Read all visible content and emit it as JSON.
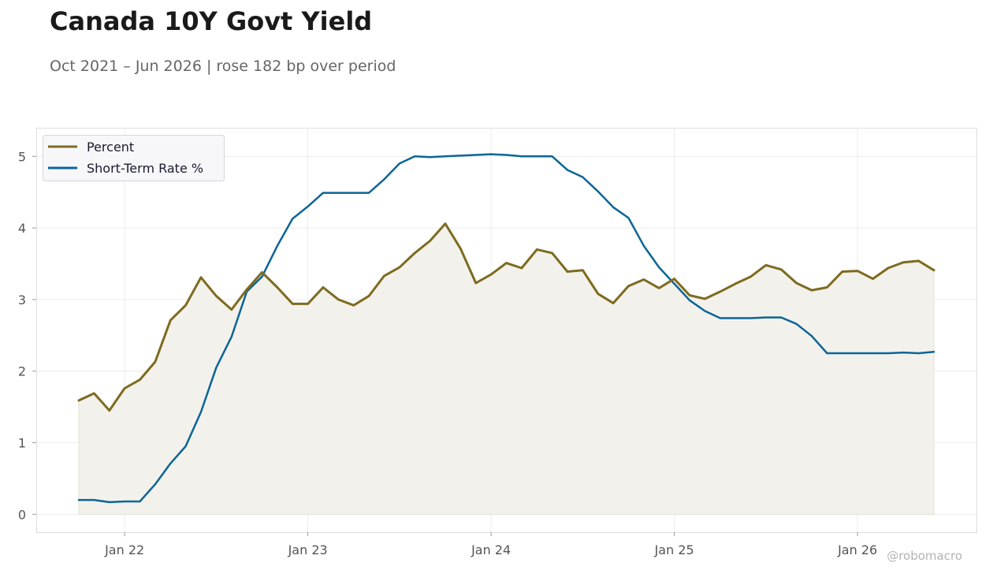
{
  "title": "Canada 10Y Govt Yield",
  "subtitle": "Oct 2021 – Jun 2026 | rose 182 bp over period",
  "watermark": "@robomacro",
  "chart_data": {
    "type": "line",
    "title": "Canada 10Y Govt Yield",
    "subtitle": "Oct 2021 – Jun 2026 | rose 182 bp over period",
    "xlabel": "",
    "ylabel": "",
    "x_start": "2021-10",
    "x_end": "2026-06",
    "x_ticks": [
      {
        "label": "Jan 22",
        "date": "2022-01"
      },
      {
        "label": "Jan 23",
        "date": "2023-01"
      },
      {
        "label": "Jan 24",
        "date": "2024-01"
      },
      {
        "label": "Jan 25",
        "date": "2025-01"
      },
      {
        "label": "Jan 26",
        "date": "2026-01"
      }
    ],
    "yticks": [
      0,
      1,
      2,
      3,
      4,
      5
    ],
    "ylim": [
      -0.25,
      5.4
    ],
    "grid": true,
    "legend_position": "top-left",
    "series": [
      {
        "name": "Percent",
        "color": "#7d6b1f",
        "fill": true,
        "fill_color": "#f3f1ec",
        "values": [
          1.59,
          1.69,
          1.45,
          1.76,
          1.88,
          2.13,
          2.71,
          2.92,
          3.31,
          3.05,
          2.86,
          3.14,
          3.38,
          3.17,
          2.94,
          2.94,
          3.17,
          3.0,
          2.92,
          3.05,
          3.33,
          3.45,
          3.65,
          3.82,
          4.06,
          3.71,
          3.23,
          3.35,
          3.51,
          3.44,
          3.7,
          3.65,
          3.39,
          3.41,
          3.08,
          2.95,
          3.19,
          3.28,
          3.16,
          3.29,
          3.06,
          3.01,
          3.11,
          3.22,
          3.32,
          3.48,
          3.42,
          3.23,
          3.13,
          3.17,
          3.39,
          3.4,
          3.29,
          3.44,
          3.52,
          3.54,
          3.41
        ]
      },
      {
        "name": "Short-Term Rate %",
        "color": "#0b6597",
        "fill": false,
        "values": [
          0.2,
          0.2,
          0.17,
          0.18,
          0.18,
          0.42,
          0.71,
          0.95,
          1.43,
          2.05,
          2.48,
          3.11,
          3.32,
          3.75,
          4.13,
          4.3,
          4.49,
          4.49,
          4.49,
          4.49,
          4.68,
          4.9,
          5.0,
          4.99,
          5.0,
          5.01,
          5.02,
          5.03,
          5.02,
          5.0,
          5.0,
          5.0,
          4.81,
          4.71,
          4.51,
          4.29,
          4.14,
          3.75,
          3.45,
          3.22,
          2.99,
          2.84,
          2.74,
          2.74,
          2.74,
          2.75,
          2.75,
          2.66,
          2.49,
          2.25,
          2.25,
          2.25,
          2.25,
          2.25,
          2.26,
          2.25,
          2.27
        ]
      }
    ]
  }
}
